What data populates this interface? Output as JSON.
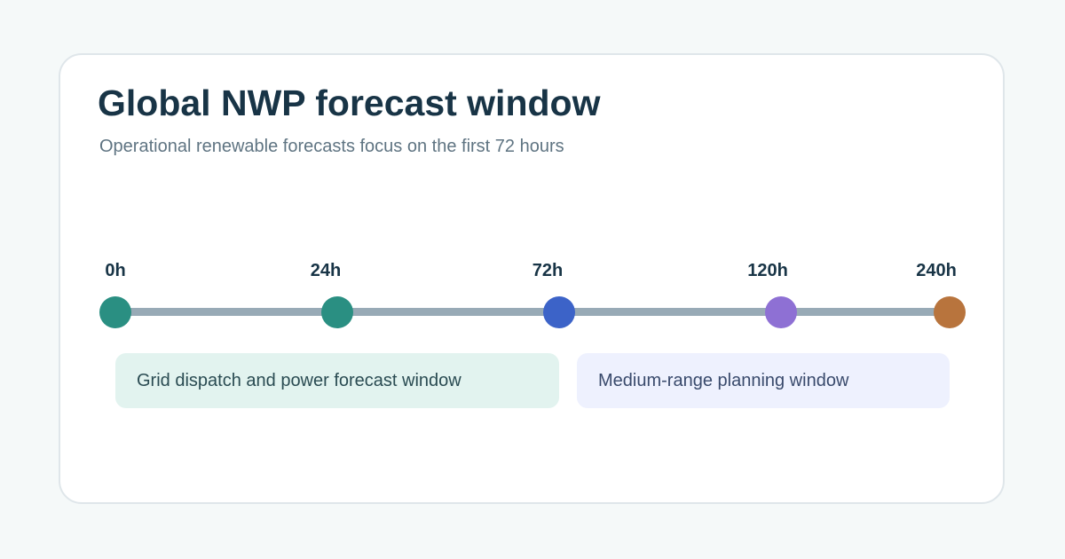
{
  "header": {
    "title": "Global NWP forecast window",
    "subtitle": "Operational renewable forecasts focus on the first 72 hours"
  },
  "timeline": {
    "track_color": "#98aab6",
    "ticks": [
      {
        "label": "0h",
        "color": "#2a8f82"
      },
      {
        "label": "24h",
        "color": "#2a8f82"
      },
      {
        "label": "72h",
        "color": "#3c63c8"
      },
      {
        "label": "120h",
        "color": "#8e70d4"
      },
      {
        "label": "240h",
        "color": "#b8743d"
      }
    ]
  },
  "bands": {
    "short_range": {
      "label": "Grid dispatch and power forecast window",
      "color": "#e2f3ef"
    },
    "medium_range": {
      "label": "Medium-range planning window",
      "color": "#eef1fe"
    }
  }
}
